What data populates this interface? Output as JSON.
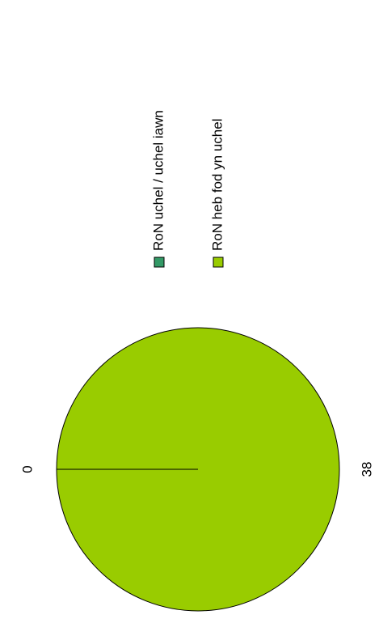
{
  "chart_data": {
    "type": "pie",
    "categories": [
      "RoN uchel / uchel iawn",
      "RoN heb fod yn uchel"
    ],
    "values": [
      0,
      38
    ],
    "colors": [
      "#339966",
      "#99cc00"
    ]
  }
}
